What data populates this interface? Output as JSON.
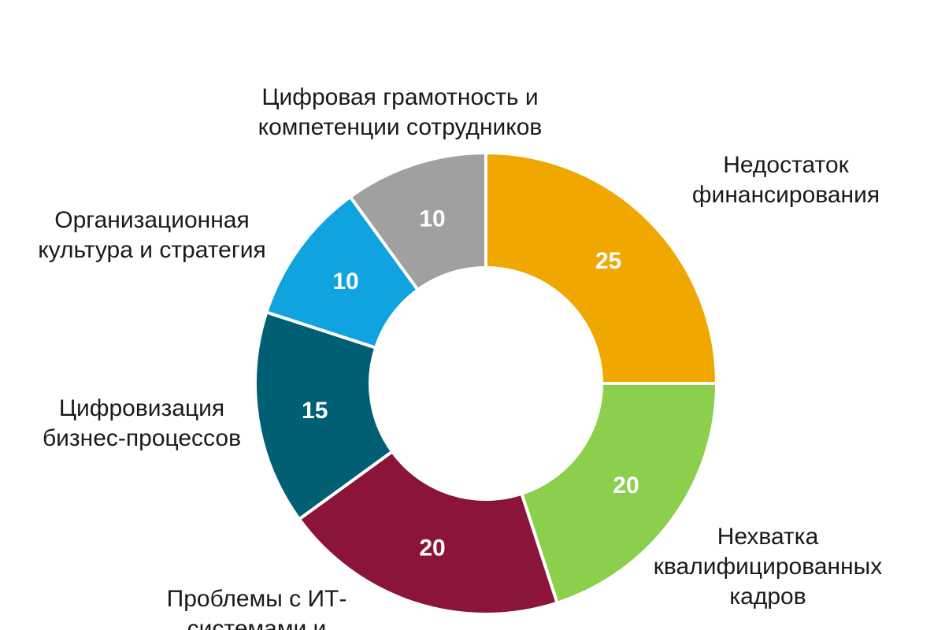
{
  "chart_data": {
    "type": "pie",
    "donut": true,
    "categories": [
      "Недостаток финансирования",
      "Нехватка квалифицированных кадров",
      "Проблемы с ИТ-системами и",
      "Цифровизация бизнес-процессов",
      "Организационная культура и стратегия",
      "Цифровая грамотность и компетенции сотрудников"
    ],
    "values": [
      25,
      20,
      20,
      15,
      10,
      10
    ],
    "colors": [
      "#f0a800",
      "#8ccf4d",
      "#8a1538",
      "#005f73",
      "#0fa4e0",
      "#a0a0a0"
    ],
    "label_lines": [
      [
        "Недостаток",
        "финансирования"
      ],
      [
        "Нехватка",
        "квалифицированных",
        "кадров"
      ],
      [
        "Проблемы с ИТ-",
        "системами и"
      ],
      [
        "Цифровизация",
        "бизнес-процессов"
      ],
      [
        "Организационная",
        "культура и стратегия"
      ],
      [
        "Цифровая грамотность и",
        "компетенции сотрудников"
      ]
    ],
    "value_labels": [
      "25",
      "20",
      "20",
      "15",
      "10",
      "10"
    ]
  }
}
